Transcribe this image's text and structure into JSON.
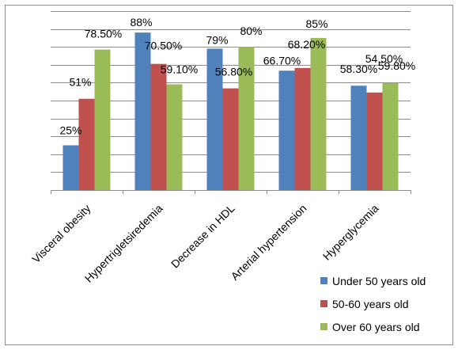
{
  "chart_data": {
    "type": "bar",
    "categories": [
      "Visceral obesity",
      "Hypertrigletsiredemia",
      "Decrease in HDL",
      "Arterial hypertension",
      "Hyperglycemia"
    ],
    "series": [
      {
        "name": "Under 50 years old",
        "color": "#4F81BD",
        "values": [
          25,
          88,
          79,
          66.7,
          58.3
        ],
        "labels": [
          "25%",
          "88%",
          "79%",
          "66.70%",
          "58.30%"
        ]
      },
      {
        "name": "50-60 years old",
        "color": "#C0504D",
        "values": [
          51,
          70.5,
          56.8,
          68.2,
          54.5
        ],
        "labels": [
          "51%",
          "70.50%",
          "56.80%",
          "68.20%",
          "54.50%"
        ]
      },
      {
        "name": "Over 60 years old",
        "color": "#9BBB59",
        "values": [
          78.5,
          59.1,
          80,
          85,
          59.8
        ],
        "labels": [
          "78.50%",
          "59.10%",
          "80%",
          "85%",
          "59.80%"
        ]
      }
    ],
    "ylim": [
      0,
      100
    ],
    "grid": true,
    "legend_position": "bottom-right",
    "title": "",
    "xlabel": "",
    "ylabel": ""
  }
}
